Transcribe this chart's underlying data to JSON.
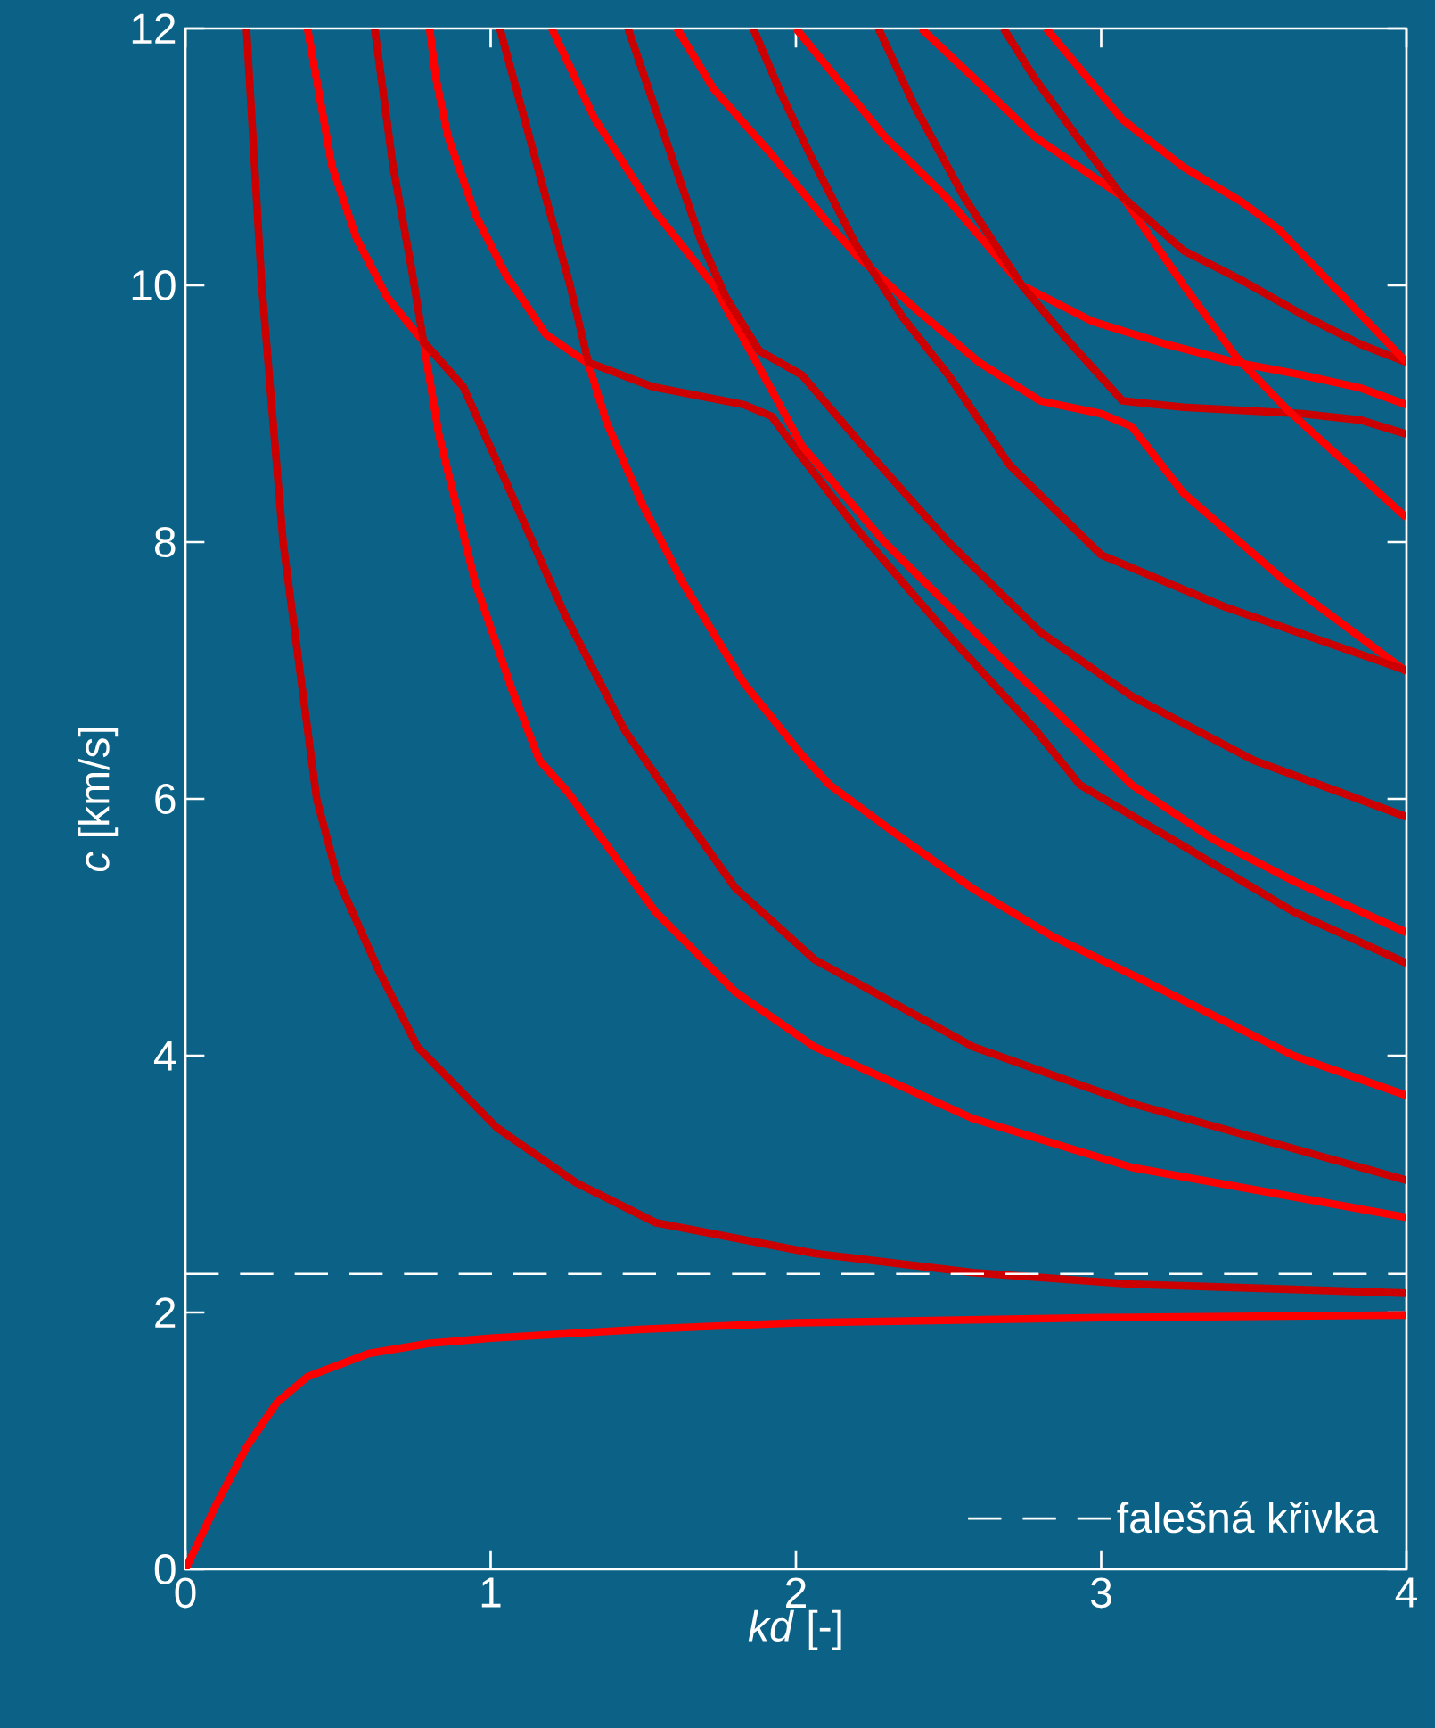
{
  "chart_data": {
    "type": "line",
    "xlabel": "*kd* [-]",
    "ylabel": "*c* [km/s]",
    "xlim": [
      0,
      4
    ],
    "ylim": [
      0,
      12
    ],
    "xticks": [
      0,
      1,
      2,
      3,
      4
    ],
    "yticks": [
      0,
      2,
      4,
      6,
      8,
      10,
      12
    ],
    "legend": "bottom right",
    "ref_lines": [
      {
        "axis": "y",
        "value": 2.3,
        "label": "falešná křivka",
        "color": "#ffffff",
        "line_style": "dashed"
      }
    ],
    "series": [
      {
        "color": "#ff0000",
        "x": [
          0,
          0.1,
          0.2,
          0.3,
          0.4,
          0.6,
          0.8,
          1,
          1.5,
          2,
          3,
          4
        ],
        "values": [
          0,
          0.5,
          0.95,
          1.3,
          1.5,
          1.68,
          1.76,
          1.8,
          1.87,
          1.92,
          1.96,
          1.98
        ]
      },
      {
        "color": "#cc0000",
        "x": [
          0.2,
          0.25,
          0.32,
          0.43,
          0.5,
          0.63,
          0.76,
          1.02,
          1.28,
          1.54,
          2.06,
          2.58,
          3.1,
          3.5,
          4.0
        ],
        "values": [
          12,
          10,
          8,
          6,
          5.37,
          4.68,
          4.07,
          3.44,
          3.01,
          2.7,
          2.46,
          2.31,
          2.22,
          2.19,
          2.15
        ]
      },
      {
        "color": "#ff0000",
        "x": [
          0.4,
          0.48,
          0.56,
          0.66,
          0.78,
          0.83,
          0.95,
          1.07,
          1.16,
          1.25,
          1.54,
          1.8,
          2.06,
          2.58,
          3.1,
          4.0
        ],
        "values": [
          12,
          10.93,
          10.37,
          9.91,
          9.56,
          8.84,
          7.68,
          6.85,
          6.3,
          6.06,
          5.12,
          4.5,
          4.07,
          3.51,
          3.13,
          2.74
        ]
      },
      {
        "color": "#cc0000",
        "x": [
          0.62,
          0.68,
          0.74,
          0.78,
          0.91,
          1.05,
          1.24,
          1.44,
          1.63,
          1.8,
          2.06,
          2.58,
          3.1,
          4.0
        ],
        "values": [
          12,
          10.93,
          10.14,
          9.56,
          9.21,
          8.47,
          7.45,
          6.53,
          5.88,
          5.31,
          4.75,
          4.07,
          3.63,
          3.03
        ]
      },
      {
        "color": "#ff0000",
        "x": [
          0.8,
          0.82,
          0.86,
          0.95,
          1.05,
          1.18,
          1.32,
          1.38,
          1.5,
          1.63,
          1.83,
          2.02,
          2.11,
          2.32,
          2.58,
          2.84,
          3.11,
          3.37,
          3.63,
          4.0
        ],
        "values": [
          12,
          11.62,
          11.16,
          10.55,
          10.08,
          9.62,
          9.39,
          8.93,
          8.28,
          7.68,
          6.9,
          6.34,
          6.11,
          5.74,
          5.3,
          4.93,
          4.62,
          4.31,
          4.0,
          3.69
        ]
      },
      {
        "color": "#cc0000",
        "x": [
          1.03,
          1.1,
          1.18,
          1.26,
          1.32,
          1.53,
          1.83,
          1.92,
          2.02,
          2.2,
          2.49,
          2.78,
          2.93,
          3.37,
          3.63,
          4.0
        ],
        "values": [
          12,
          11.39,
          10.69,
          10.0,
          9.4,
          9.21,
          9.07,
          8.98,
          8.66,
          8.1,
          7.3,
          6.55,
          6.11,
          5.49,
          5.12,
          4.72
        ]
      },
      {
        "color": "#ff0000",
        "x": [
          1.2,
          1.34,
          1.53,
          1.73,
          1.85,
          2.02,
          2.29,
          2.68,
          3.1,
          3.37,
          3.63,
          4.0
        ],
        "values": [
          12,
          11.3,
          10.6,
          10.0,
          9.49,
          8.75,
          8.0,
          7.08,
          6.11,
          5.68,
          5.36,
          4.96
        ]
      },
      {
        "color": "#cc0000",
        "x": [
          1.45,
          1.57,
          1.69,
          1.77,
          1.88,
          2.02,
          2.2,
          2.5,
          2.8,
          3.1,
          3.5,
          4.0
        ],
        "values": [
          12,
          11.16,
          10.34,
          9.91,
          9.49,
          9.3,
          8.8,
          8.0,
          7.3,
          6.8,
          6.3,
          5.86
        ]
      },
      {
        "color": "#ff0000",
        "x": [
          1.61,
          1.73,
          1.92,
          2.1,
          2.2,
          2.4,
          2.6,
          2.8,
          3.0,
          3.1,
          3.27,
          3.6,
          4.0
        ],
        "values": [
          12,
          11.53,
          11.02,
          10.5,
          10.23,
          9.8,
          9.4,
          9.1,
          9.0,
          8.9,
          8.38,
          7.7,
          6.99
        ]
      },
      {
        "color": "#cc0000",
        "x": [
          1.86,
          1.95,
          2.05,
          2.2,
          2.35,
          2.5,
          2.7,
          3.0,
          3.4,
          4.0
        ],
        "values": [
          12,
          11.5,
          11.0,
          10.3,
          9.75,
          9.3,
          8.6,
          7.9,
          7.5,
          7.0
        ]
      },
      {
        "color": "#ff0000",
        "x": [
          2.0,
          2.1,
          2.29,
          2.49,
          2.74,
          2.97,
          3.2,
          3.44,
          3.66,
          3.85,
          4.0
        ],
        "values": [
          12,
          11.71,
          11.16,
          10.69,
          10.0,
          9.72,
          9.55,
          9.4,
          9.3,
          9.2,
          9.07
        ]
      },
      {
        "color": "#cc0000",
        "x": [
          2.27,
          2.39,
          2.55,
          2.74,
          2.88,
          3.07,
          3.27,
          3.66,
          3.85,
          4.0
        ],
        "values": [
          12,
          11.39,
          10.69,
          10.0,
          9.6,
          9.1,
          9.05,
          9.0,
          8.95,
          8.84
        ]
      },
      {
        "color": "#ff0000",
        "x": [
          2.41,
          2.58,
          2.78,
          3.07,
          3.27,
          3.44,
          3.61,
          4.0
        ],
        "values": [
          12,
          11.62,
          11.16,
          10.69,
          10.0,
          9.45,
          9.03,
          8.19
        ]
      },
      {
        "color": "#cc0000",
        "x": [
          2.68,
          2.78,
          2.92,
          3.07,
          3.27,
          3.46,
          3.66,
          3.85,
          4.0
        ],
        "values": [
          12,
          11.62,
          11.16,
          10.69,
          10.27,
          10.04,
          9.77,
          9.54,
          9.4
        ]
      },
      {
        "color": "#ff0000",
        "x": [
          2.82,
          3.07,
          3.27,
          3.46,
          3.58,
          4.0
        ],
        "values": [
          12,
          11.29,
          10.92,
          10.65,
          10.44,
          9.4
        ]
      }
    ]
  }
}
